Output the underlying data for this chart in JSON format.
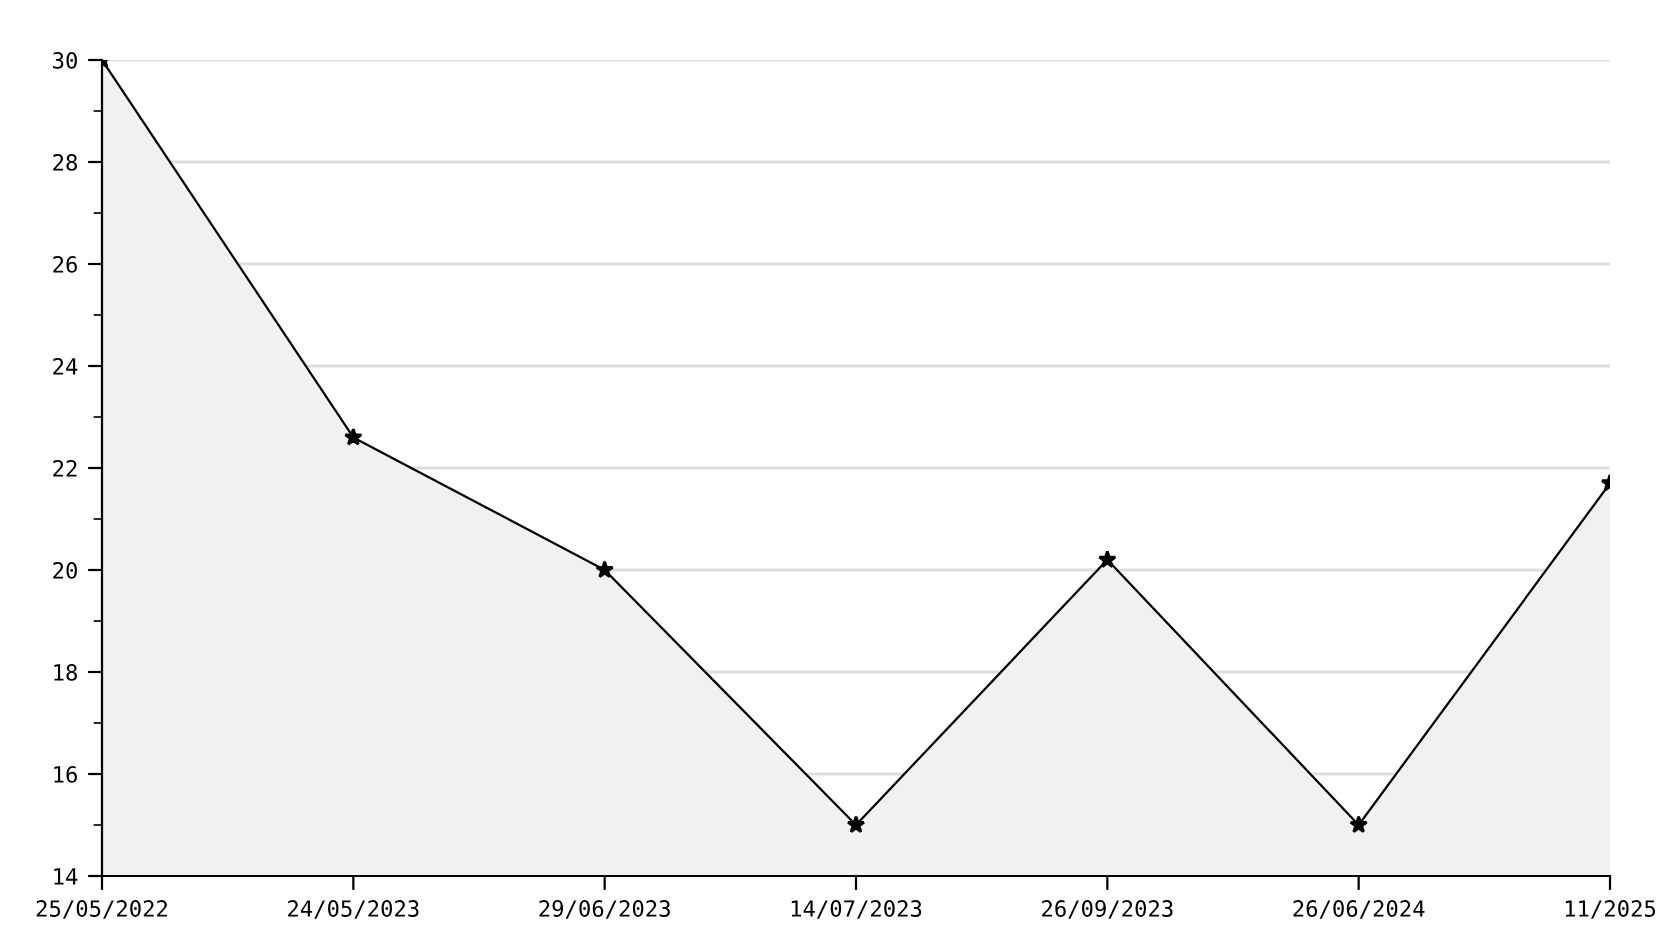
{
  "chart_data": {
    "type": "area",
    "categories": [
      "25/05/2022",
      "24/05/2023",
      "29/06/2023",
      "14/07/2023",
      "26/09/2023",
      "26/06/2024",
      "11/2025"
    ],
    "series": [
      {
        "color": "#000000",
        "values": [
          30,
          22.6,
          20,
          15,
          20.2,
          15,
          21.7
        ]
      }
    ],
    "ylim": [
      14,
      30
    ],
    "yticks": [
      14,
      {
        "value": 15,
        "label": null
      },
      16,
      {
        "value": 17,
        "label": null
      },
      18,
      {
        "value": 19,
        "label": null
      },
      20,
      {
        "value": 21,
        "label": null
      },
      22,
      {
        "value": 23,
        "label": null
      },
      24,
      {
        "value": 25,
        "label": null
      },
      26,
      {
        "value": 27,
        "label": null
      },
      28,
      {
        "value": 29,
        "label": null
      },
      30
    ],
    "grid": "y",
    "marker": "star",
    "line_style": "solid"
  }
}
